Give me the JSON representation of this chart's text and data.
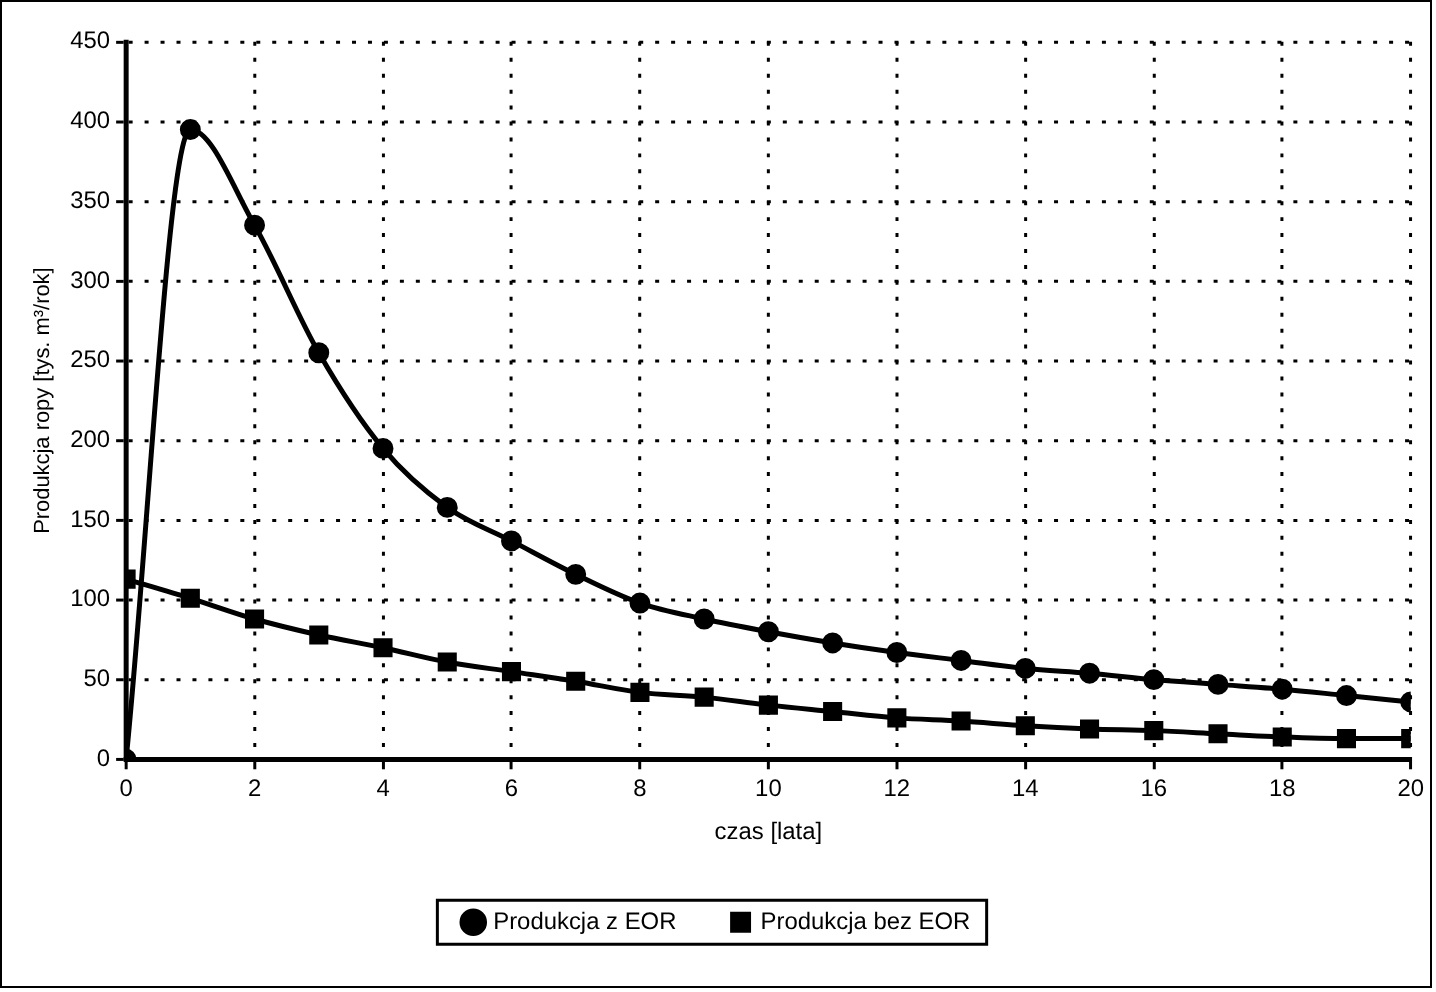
{
  "chart_data": {
    "type": "line",
    "xlabel": "czas [lata]",
    "ylabel": "Produkcja ropy [tys. m³/rok]",
    "x": [
      0,
      1,
      2,
      3,
      4,
      5,
      6,
      7,
      8,
      9,
      10,
      11,
      12,
      13,
      14,
      15,
      16,
      17,
      18,
      19,
      20
    ],
    "xlim": [
      0,
      20
    ],
    "xticks": [
      0,
      2,
      4,
      6,
      8,
      10,
      12,
      14,
      16,
      18,
      20
    ],
    "ylim": [
      0,
      450
    ],
    "yticks": [
      0,
      50,
      100,
      150,
      200,
      250,
      300,
      350,
      400,
      450
    ],
    "grid": true,
    "legend": "bottom",
    "line_style": "solid",
    "series": [
      {
        "name": "Produkcja z EOR",
        "color": "#000000",
        "marker": "circle",
        "values": [
          0,
          395,
          335,
          255,
          195,
          158,
          137,
          116,
          98,
          88,
          80,
          73,
          67,
          62,
          57,
          54,
          50,
          47,
          44,
          40,
          36
        ]
      },
      {
        "name": "Produkcja bez EOR",
        "color": "#000000",
        "marker": "square",
        "values": [
          113,
          101,
          88,
          78,
          70,
          61,
          55,
          49,
          42,
          39,
          34,
          30,
          26,
          24,
          21,
          19,
          18,
          16,
          14,
          13,
          13
        ]
      }
    ]
  }
}
